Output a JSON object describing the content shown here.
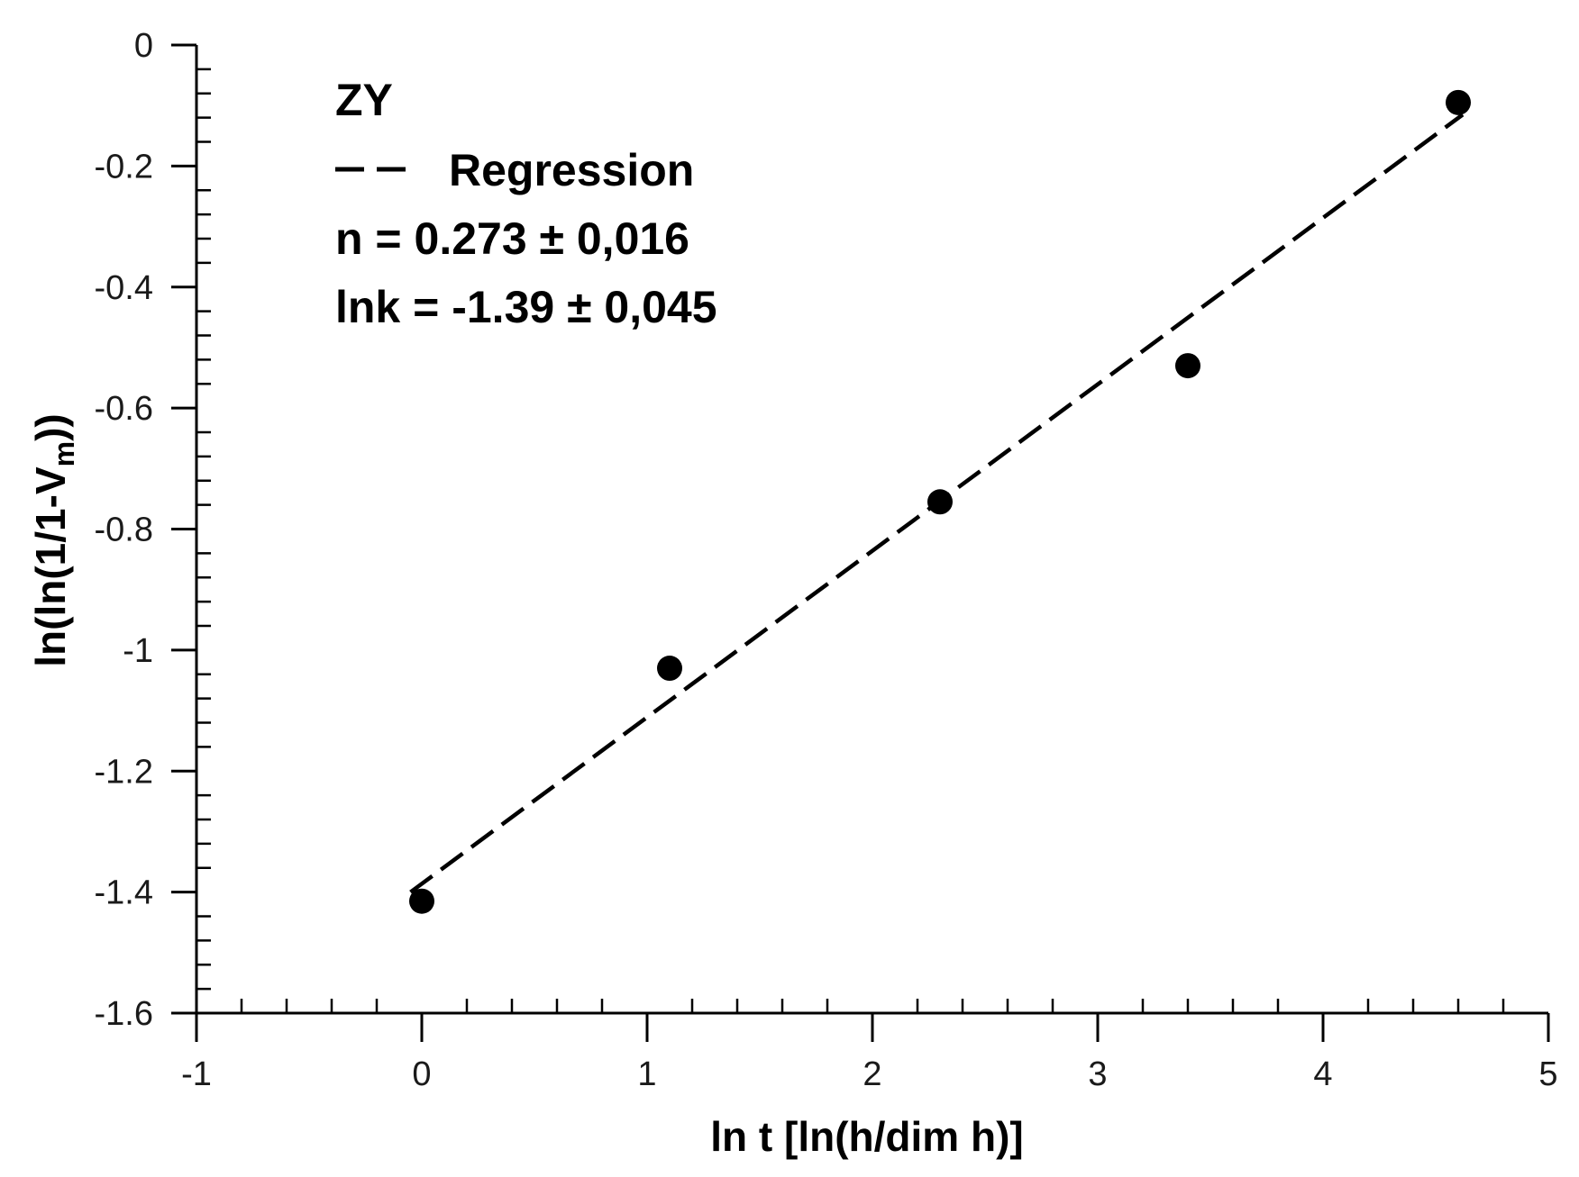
{
  "chart_data": {
    "type": "scatter",
    "xlabel": "ln t [ln(h/dim h)]",
    "ylabel": "ln(ln(1/1-V_m))",
    "ylabel_main": "ln(ln(1/1-V",
    "ylabel_sub": "m",
    "ylabel_end": "))",
    "xlim": [
      -1,
      5
    ],
    "ylim": [
      -1.6,
      0
    ],
    "x_ticks": [
      "-1",
      "0",
      "1",
      "2",
      "3",
      "4",
      "5"
    ],
    "y_ticks": [
      "0",
      "-0.2",
      "-0.4",
      "-0.6",
      "-0.8",
      "-1",
      "-1.2",
      "-1.4",
      "-1.6"
    ],
    "grid": false,
    "series": [
      {
        "name": "ZY",
        "kind": "points",
        "color": "#000000",
        "x": [
          0,
          1.1,
          2.3,
          3.4,
          4.6
        ],
        "y": [
          -1.415,
          -1.03,
          -0.755,
          -0.53,
          -0.095
        ]
      },
      {
        "name": "Regression",
        "kind": "dashed-line",
        "color": "#000000",
        "x": [
          -0.05,
          4.62
        ],
        "y": [
          -1.4,
          -0.115
        ]
      }
    ],
    "legend": {
      "position": "top-left",
      "series_label": "ZY",
      "line_label": "Regression",
      "n_text": "n = 0.273 ± 0,016",
      "lnk_text": "lnk = -1.39 ± 0,045"
    }
  }
}
